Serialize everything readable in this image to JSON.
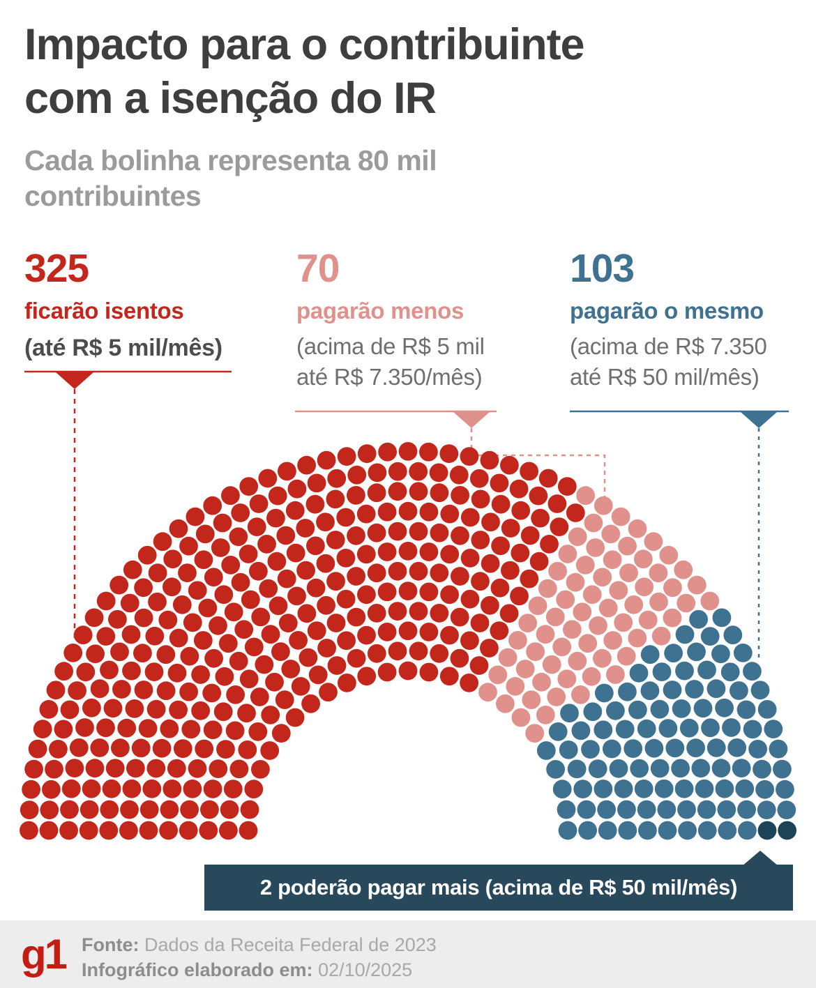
{
  "header": {
    "title_lines": [
      "Impacto para o contribuinte",
      "com a isenção do IR"
    ],
    "subtitle_lines": [
      "Cada bolinha representa 80 mil",
      "contribuintes"
    ]
  },
  "legend": [
    {
      "number": "325",
      "label": "ficarão isentos",
      "desc_lines": [
        "(até R$ 5 mil/mês)"
      ],
      "color": "#c3261a"
    },
    {
      "number": "70",
      "label": "pagarão menos",
      "desc_lines": [
        "(acima de R$ 5 mil",
        "até R$ 7.350/mês)"
      ],
      "color": "#e0918c"
    },
    {
      "number": "103",
      "label": "pagarão o mesmo",
      "desc_lines": [
        "(acima de R$ 7.350",
        "até R$ 50 mil/mês)"
      ],
      "color": "#3e7290"
    }
  ],
  "banner": {
    "text": "2 poderão pagar mais (acima de R$ 50 mil/mês)",
    "color": "#28495c"
  },
  "footer": {
    "logo": "g1",
    "source_label": "Fonte:",
    "source_value": "Dados da Receita Federal de 2023",
    "made_label": "Infográfico elaborado em:",
    "made_value": "02/10/2025"
  },
  "chart_data": {
    "type": "parliament",
    "title": "Impacto para o contribuinte com a isenção do IR",
    "subtitle": "Cada bolinha representa 80 mil contribuintes",
    "unit_per_dot": "80 mil contribuintes",
    "total_dots": 500,
    "layout_hint": "hemicycle of 12 concentric dot rows, filled by angle from left (180°) to right (0°)",
    "series": [
      {
        "name": "ficarão isentos",
        "detail": "até R$ 5 mil/mês",
        "value": 325,
        "color": "#c3261a"
      },
      {
        "name": "pagarão menos",
        "detail": "acima de R$ 5 mil até R$ 7.350/mês",
        "value": 70,
        "color": "#e0918c"
      },
      {
        "name": "pagarão o mesmo",
        "detail": "acima de R$ 7.350 até R$ 50 mil/mês",
        "value": 103,
        "color": "#3e7290"
      },
      {
        "name": "poderão pagar mais",
        "detail": "acima de R$ 50 mil/mês",
        "value": 2,
        "color": "#1c4456"
      }
    ]
  }
}
